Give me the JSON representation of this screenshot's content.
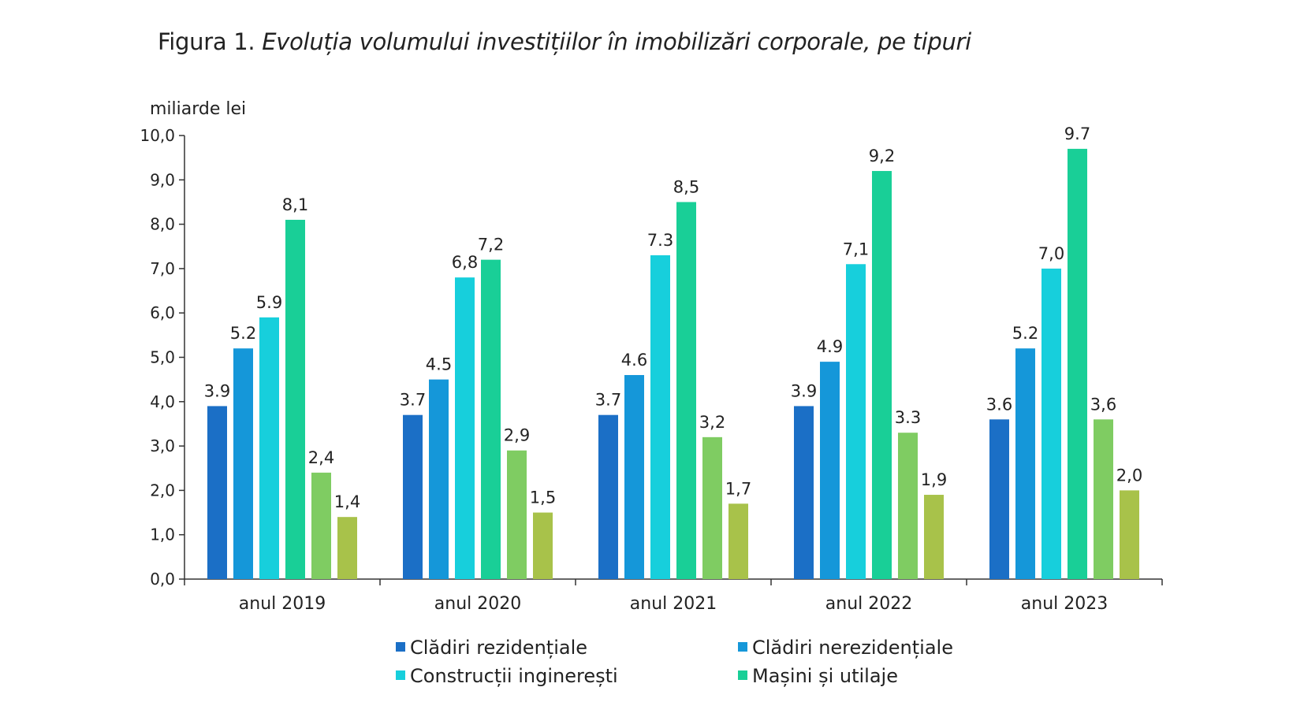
{
  "figure": {
    "prefix": "Figura 1.",
    "title": "Evoluția volumului investițiilor în imobilizări corporale, pe tipuri"
  },
  "chart_data": {
    "type": "bar",
    "ylabel": "miliarde lei",
    "ylim": [
      0,
      10
    ],
    "yticks": [
      "0,0",
      "1,0",
      "2,0",
      "3,0",
      "4,0",
      "5,0",
      "6,0",
      "7,0",
      "8,0",
      "9,0",
      "10,0"
    ],
    "categories": [
      "anul 2019",
      "anul 2020",
      "anul 2021",
      "anul 2022",
      "anul 2023"
    ],
    "series": [
      {
        "name": "Clădiri rezidențiale",
        "color": "#1b6fc6",
        "values": [
          3.9,
          3.7,
          3.7,
          3.9,
          3.6
        ],
        "labels": [
          "3.9",
          "3.7",
          "3.7",
          "3.9",
          "3.6"
        ]
      },
      {
        "name": "Clădiri nerezidențiale",
        "color": "#1597d9",
        "values": [
          5.2,
          4.5,
          4.6,
          4.9,
          5.2
        ],
        "labels": [
          "5.2",
          "4.5",
          "4.6",
          "4.9",
          "5.2"
        ]
      },
      {
        "name": "Construcții inginerești",
        "color": "#17cfdc",
        "values": [
          5.9,
          6.8,
          7.3,
          7.1,
          7.0
        ],
        "labels": [
          "5.9",
          "6,8",
          "7.3",
          "7,1",
          "7,0"
        ]
      },
      {
        "name": "Mașini și utilaje",
        "color": "#19cf97",
        "values": [
          8.1,
          7.2,
          8.5,
          9.2,
          9.7
        ],
        "labels": [
          "8,1",
          "7,2",
          "8,5",
          "9,2",
          "9.7"
        ]
      },
      {
        "color": "#7fcc62",
        "values": [
          2.4,
          2.9,
          3.2,
          3.3,
          3.6
        ],
        "labels": [
          "2,4",
          "2,9",
          "3,2",
          "3.3",
          "3,6"
        ]
      },
      {
        "color": "#a8c24a",
        "values": [
          1.4,
          1.5,
          1.7,
          1.9,
          2.0
        ],
        "labels": [
          "1,4",
          "1,5",
          "1,7",
          "1,9",
          "2,0"
        ]
      }
    ],
    "grid": false,
    "legend_position": "bottom"
  }
}
